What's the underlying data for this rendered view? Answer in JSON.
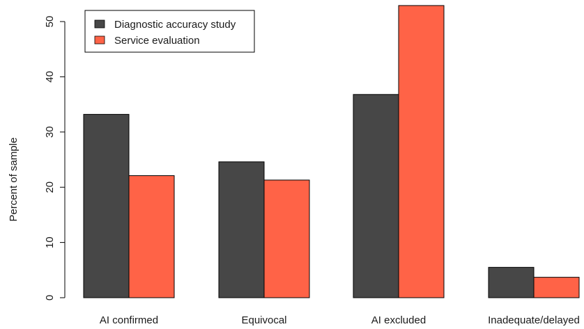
{
  "chart_data": {
    "type": "bar",
    "categories": [
      "AI confirmed",
      "Equivocal",
      "AI excluded",
      "Inadequate/delayed"
    ],
    "series": [
      {
        "name": "Diagnostic accuracy study",
        "color": "#474747",
        "values": [
          33.2,
          24.6,
          36.8,
          5.5
        ]
      },
      {
        "name": "Service evaluation",
        "color": "#ff6347",
        "values": [
          22.1,
          21.3,
          52.9,
          3.7
        ]
      }
    ],
    "xlabel": "",
    "ylabel": "Percent of sample",
    "ylim": [
      0,
      53
    ],
    "yticks": [
      0,
      10,
      20,
      30,
      40,
      50
    ],
    "grid": false,
    "legend_position": "top-left"
  }
}
